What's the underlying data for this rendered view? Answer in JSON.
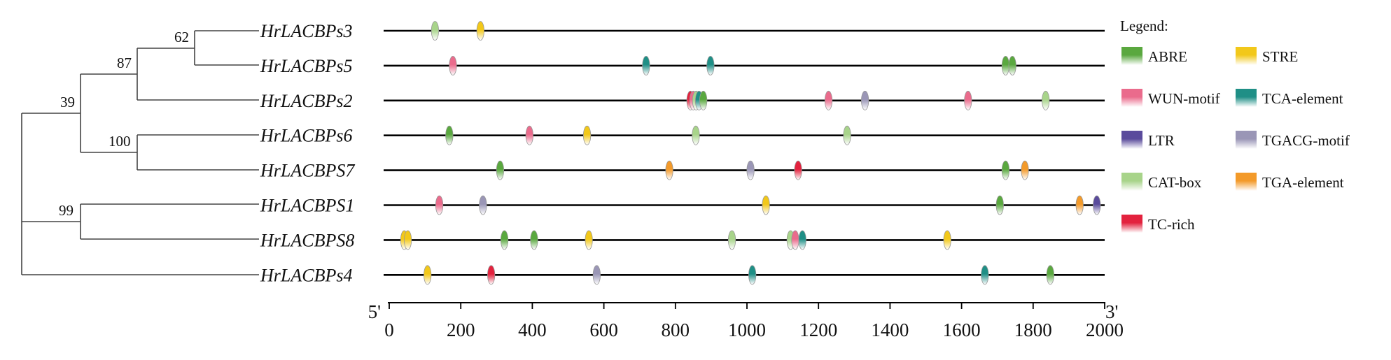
{
  "chart_data": {
    "type": "diagram",
    "legend_title": "Legend:",
    "axis": {
      "start_label": "5'",
      "end_label": "3'",
      "min": 0,
      "max": 2000,
      "ticks": [
        0,
        200,
        400,
        600,
        800,
        1000,
        1200,
        1400,
        1600,
        1800,
        2000
      ],
      "tick_labels": [
        "0",
        "200",
        "400",
        "600",
        "800",
        "1000",
        "1200",
        "1400",
        "1600",
        "1800",
        "2000"
      ]
    },
    "element_types": [
      {
        "name": "ABRE",
        "color": "#5aa83f"
      },
      {
        "name": "STRE",
        "color": "#f2c81a"
      },
      {
        "name": "WUN-motif",
        "color": "#ea6b8c"
      },
      {
        "name": "TCA-element",
        "color": "#1f8f86"
      },
      {
        "name": "LTR",
        "color": "#5a4b9c"
      },
      {
        "name": "TGACG-motif",
        "color": "#9a96b6"
      },
      {
        "name": "CAT-box",
        "color": "#a8d48a"
      },
      {
        "name": "TGA-element",
        "color": "#f39a2a"
      },
      {
        "name": "TC-rich",
        "color": "#e3223e"
      }
    ],
    "genes": [
      {
        "name": "HrLACBPs3",
        "elements": [
          {
            "type": "CAT-box",
            "pos": 128
          },
          {
            "type": "STRE",
            "pos": 255
          }
        ]
      },
      {
        "name": "HrLACBPs5",
        "elements": [
          {
            "type": "WUN-motif",
            "pos": 178
          },
          {
            "type": "TCA-element",
            "pos": 718
          },
          {
            "type": "TCA-element",
            "pos": 898
          },
          {
            "type": "ABRE",
            "pos": 1723
          },
          {
            "type": "ABRE",
            "pos": 1742
          }
        ]
      },
      {
        "name": "HrLACBPs2",
        "elements": [
          {
            "type": "TC-rich",
            "pos": 842
          },
          {
            "type": "WUN-motif",
            "pos": 850
          },
          {
            "type": "CAT-box",
            "pos": 858
          },
          {
            "type": "TCA-element",
            "pos": 866
          },
          {
            "type": "ABRE",
            "pos": 878
          },
          {
            "type": "WUN-motif",
            "pos": 1228
          },
          {
            "type": "TGACG-motif",
            "pos": 1330
          },
          {
            "type": "WUN-motif",
            "pos": 1618
          },
          {
            "type": "CAT-box",
            "pos": 1835
          }
        ]
      },
      {
        "name": "HrLACBPs6",
        "elements": [
          {
            "type": "ABRE",
            "pos": 168
          },
          {
            "type": "WUN-motif",
            "pos": 392
          },
          {
            "type": "STRE",
            "pos": 553
          },
          {
            "type": "CAT-box",
            "pos": 857
          },
          {
            "type": "CAT-box",
            "pos": 1280
          }
        ]
      },
      {
        "name": "HrLACBPS7",
        "elements": [
          {
            "type": "ABRE",
            "pos": 310
          },
          {
            "type": "TGA-element",
            "pos": 783
          },
          {
            "type": "TGACG-motif",
            "pos": 1010
          },
          {
            "type": "TC-rich",
            "pos": 1143
          },
          {
            "type": "ABRE",
            "pos": 1723
          },
          {
            "type": "TGA-element",
            "pos": 1777
          }
        ]
      },
      {
        "name": "HrLACBPS1",
        "elements": [
          {
            "type": "WUN-motif",
            "pos": 140
          },
          {
            "type": "TGACG-motif",
            "pos": 262
          },
          {
            "type": "STRE",
            "pos": 1053
          },
          {
            "type": "ABRE",
            "pos": 1707
          },
          {
            "type": "TGA-element",
            "pos": 1930
          },
          {
            "type": "LTR",
            "pos": 1978
          }
        ]
      },
      {
        "name": "HrLACBPS8",
        "elements": [
          {
            "type": "STRE",
            "pos": 42
          },
          {
            "type": "STRE",
            "pos": 52
          },
          {
            "type": "ABRE",
            "pos": 322
          },
          {
            "type": "ABRE",
            "pos": 405
          },
          {
            "type": "STRE",
            "pos": 558
          },
          {
            "type": "CAT-box",
            "pos": 958
          },
          {
            "type": "CAT-box",
            "pos": 1122
          },
          {
            "type": "WUN-motif",
            "pos": 1135
          },
          {
            "type": "TCA-element",
            "pos": 1155
          },
          {
            "type": "STRE",
            "pos": 1560
          }
        ]
      },
      {
        "name": "HrLACBPs4",
        "elements": [
          {
            "type": "STRE",
            "pos": 107
          },
          {
            "type": "TC-rich",
            "pos": 285
          },
          {
            "type": "TGACG-motif",
            "pos": 580
          },
          {
            "type": "TCA-element",
            "pos": 1015
          },
          {
            "type": "TCA-element",
            "pos": 1665
          },
          {
            "type": "ABRE",
            "pos": 1848
          }
        ]
      }
    ],
    "tree": {
      "bootstrap": [
        {
          "value": "62",
          "node": "s3_s5"
        },
        {
          "value": "87",
          "node": "s3_s5_s2"
        },
        {
          "value": "39",
          "node": "top"
        },
        {
          "value": "100",
          "node": "s6_s7"
        },
        {
          "value": "99",
          "node": "s1_s8"
        }
      ]
    }
  }
}
